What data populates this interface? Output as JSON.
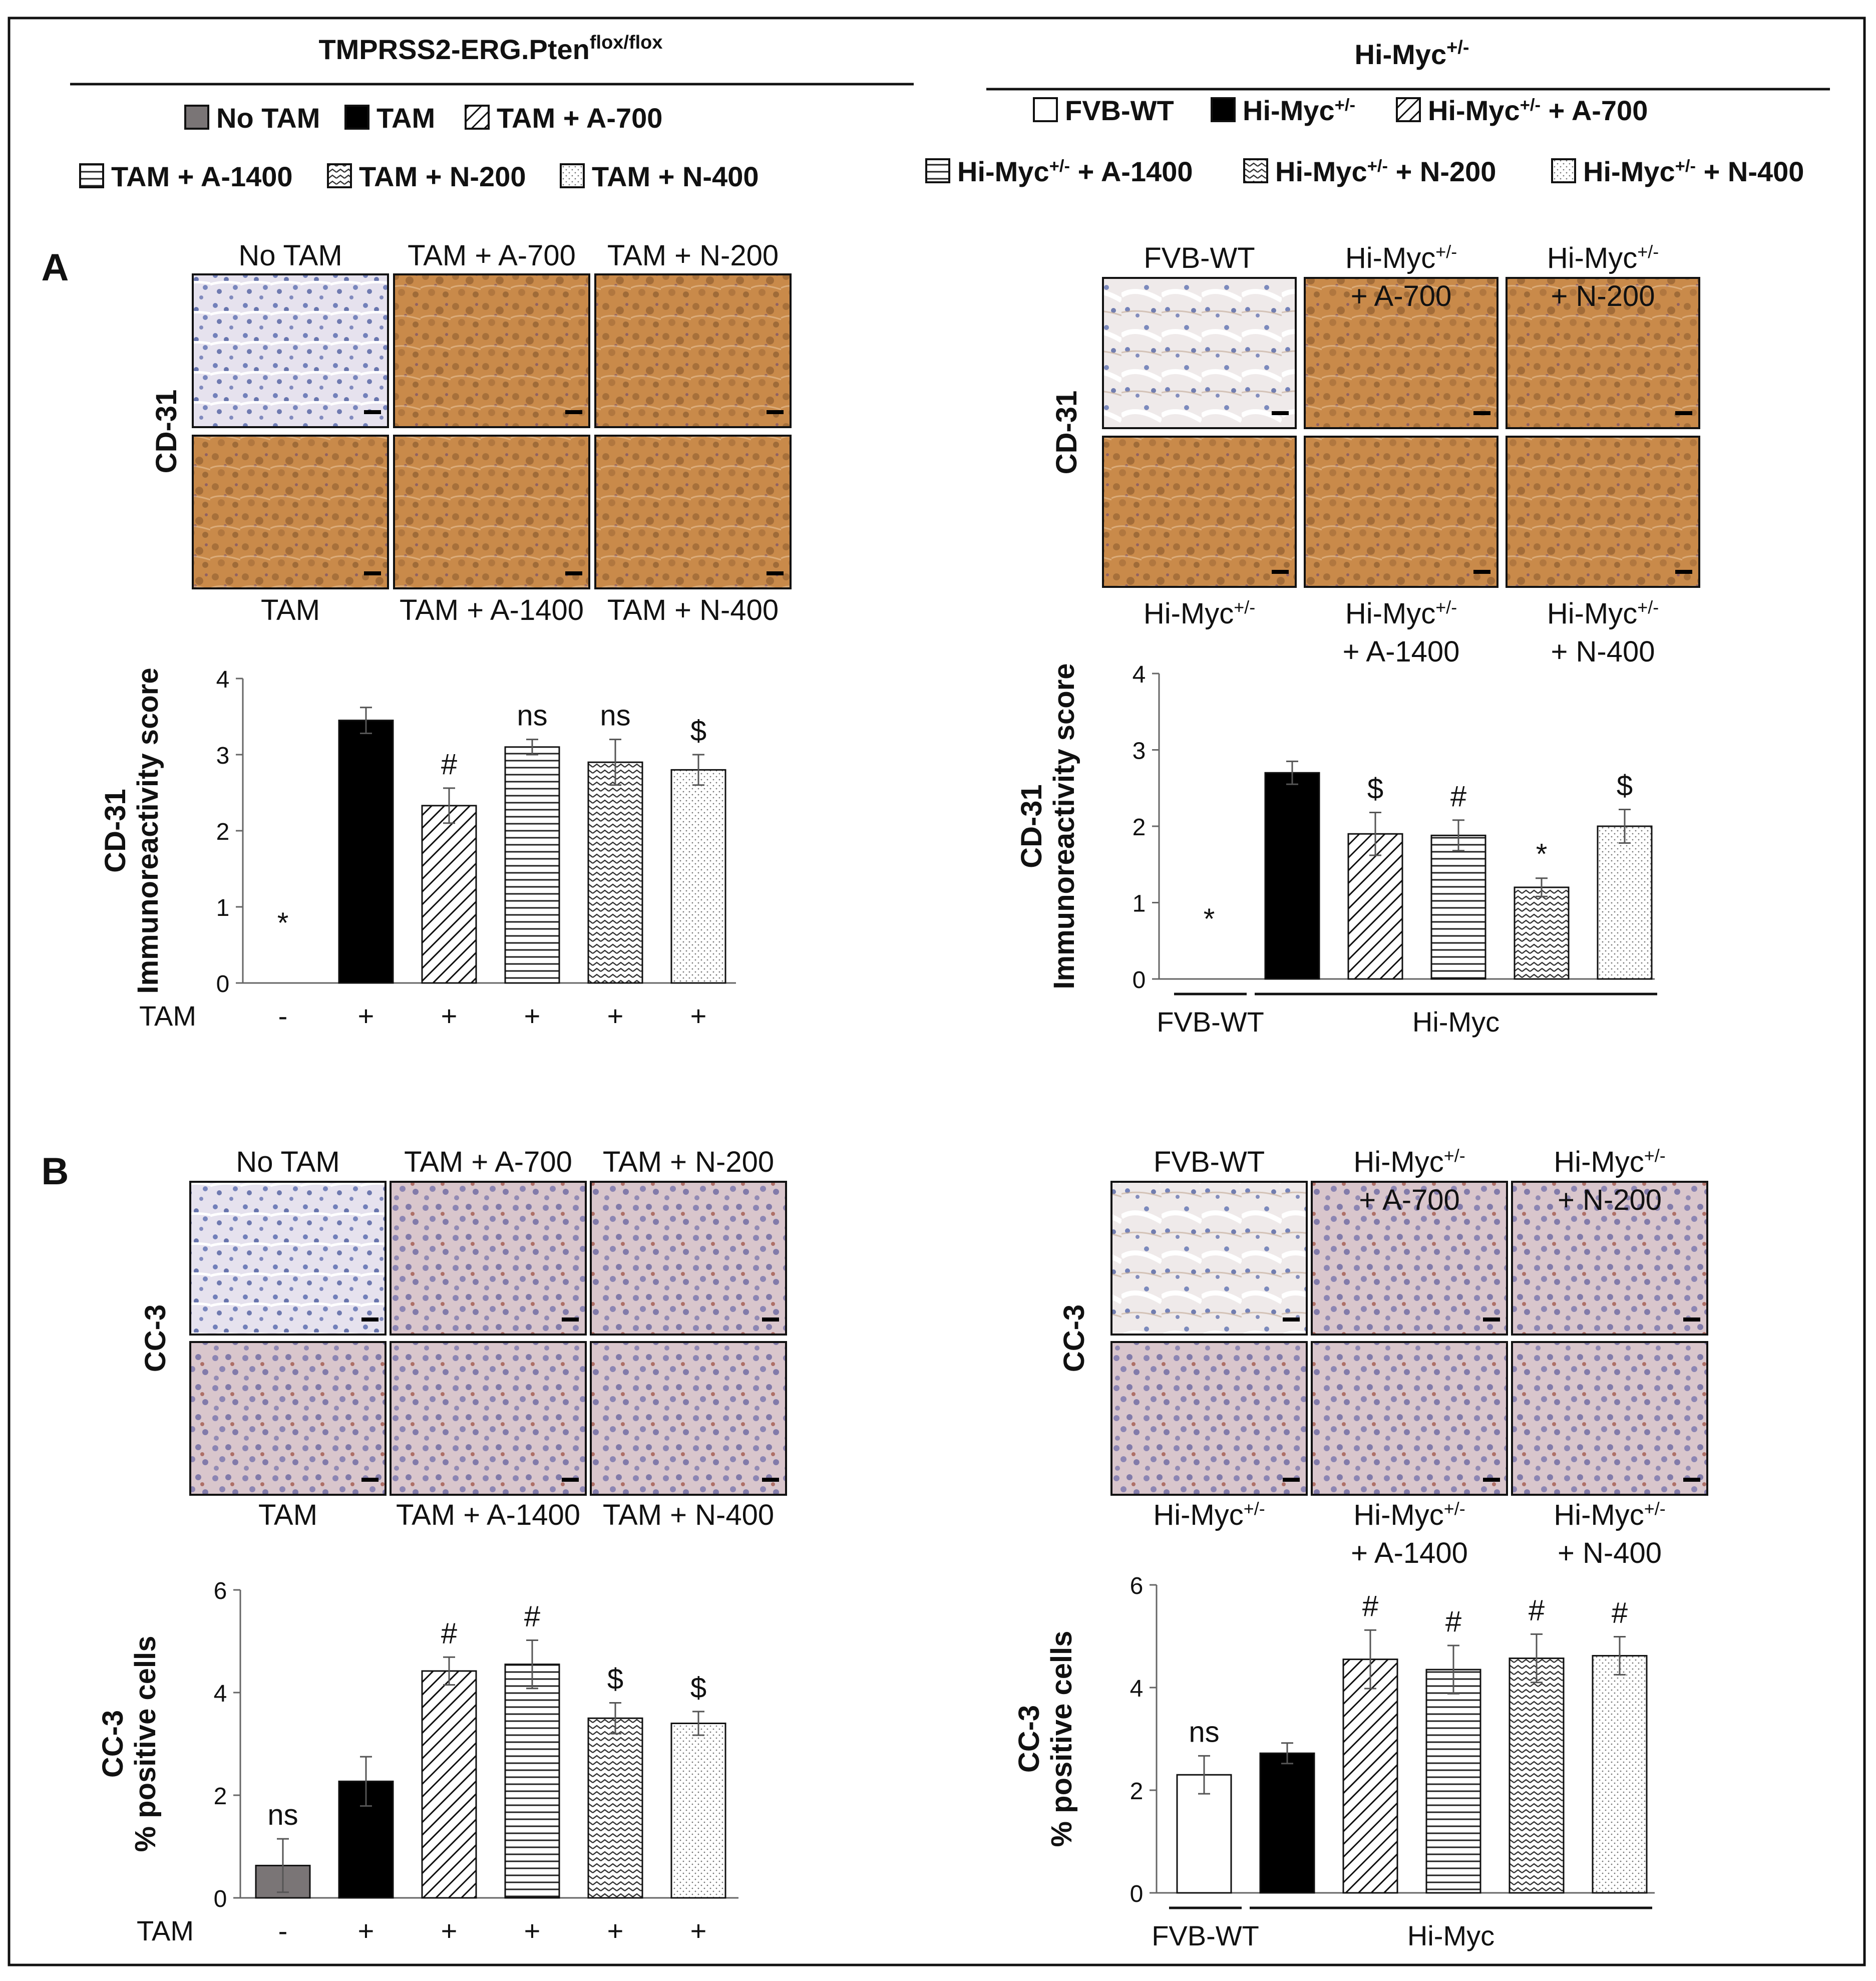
{
  "left_panel": {
    "title": "TMPRSS2-ERG.Pten",
    "title_sup": "flox/flox",
    "legend_row1": [
      {
        "label": "No TAM",
        "pattern": "gray"
      },
      {
        "label": "TAM",
        "pattern": "black"
      },
      {
        "label": "TAM + A-700",
        "pattern": "diag"
      }
    ],
    "legend_row2": [
      {
        "label": "TAM + A-1400",
        "pattern": "horiz"
      },
      {
        "label": "TAM + N-200",
        "pattern": "wave"
      },
      {
        "label": "TAM + N-400",
        "pattern": "dots"
      }
    ]
  },
  "right_panel": {
    "title": "Hi-Myc",
    "title_sup": "+/-",
    "legend_row1": [
      {
        "label": "FVB-WT",
        "pattern": "white"
      },
      {
        "label": "Hi-Myc+/-",
        "pattern": "black"
      },
      {
        "label": "Hi-Myc+/- + A-700",
        "pattern": "diag"
      }
    ],
    "legend_row2": [
      {
        "label": "Hi-Myc+/- + A-1400",
        "pattern": "horiz"
      },
      {
        "label": "Hi-Myc+/- + N-200",
        "pattern": "wave"
      },
      {
        "label": "Hi-Myc+/- + N-400",
        "pattern": "dots"
      }
    ]
  },
  "section_labels": {
    "a": "A",
    "b": "B"
  },
  "micrographs": {
    "A_left": {
      "stain": "CD-31",
      "top": [
        "No TAM",
        "TAM + A-700",
        "TAM + N-200"
      ],
      "bottom": [
        "TAM",
        "TAM + A-1400",
        "TAM + N-400"
      ]
    },
    "A_right": {
      "stain": "CD-31",
      "top": [
        "FVB-WT",
        "Hi-Myc+/-\n+ A-700",
        "Hi-Myc+/-\n+ N-200"
      ],
      "bottom": [
        "Hi-Myc+/-",
        "Hi-Myc+/-\n+ A-1400",
        "Hi-Myc+/-\n+ N-400"
      ]
    },
    "B_left": {
      "stain": "CC-3",
      "top": [
        "No TAM",
        "TAM + A-700",
        "TAM + N-200"
      ],
      "bottom": [
        "TAM",
        "TAM + A-1400",
        "TAM + N-400"
      ]
    },
    "B_right": {
      "stain": "CC-3",
      "top": [
        "FVB-WT",
        "Hi-Myc+/-\n+ A-700",
        "Hi-Myc+/-\n+ N-200"
      ],
      "bottom": [
        "Hi-Myc+/-",
        "Hi-Myc+/-\n+ A-1400",
        "Hi-Myc+/-\n+ N-400"
      ]
    }
  },
  "chart_data": [
    {
      "id": "A_left",
      "type": "bar",
      "ylabel": [
        "CD-31",
        "Immunoreactivity score"
      ],
      "ylim": [
        0,
        4
      ],
      "yticks": [
        0,
        1,
        2,
        3,
        4
      ],
      "xlabel_prefix": "TAM",
      "tam_signs": [
        "-",
        "+",
        "+",
        "+",
        "+",
        "+"
      ],
      "values": [
        0,
        3.45,
        2.33,
        3.1,
        2.9,
        2.8
      ],
      "errors": [
        0,
        0.17,
        0.23,
        0.1,
        0.3,
        0.2
      ],
      "patterns": [
        "gray",
        "black",
        "diag",
        "horiz",
        "wave",
        "dots"
      ],
      "annotations": [
        "*",
        "",
        "#",
        "ns",
        "ns",
        "$"
      ]
    },
    {
      "id": "A_right",
      "type": "bar",
      "ylabel": [
        "CD-31",
        "Immunoreactivity score"
      ],
      "ylim": [
        0,
        4
      ],
      "yticks": [
        0,
        1,
        2,
        3,
        4
      ],
      "group_labels": [
        "FVB-WT",
        "Hi-Myc"
      ],
      "values": [
        0,
        2.7,
        1.9,
        1.88,
        1.2,
        2.0
      ],
      "errors": [
        0,
        0.15,
        0.28,
        0.2,
        0.12,
        0.22
      ],
      "patterns": [
        "white",
        "black",
        "diag",
        "horiz",
        "wave",
        "dots"
      ],
      "annotations": [
        "*",
        "",
        "$",
        "#",
        "*",
        "$"
      ]
    },
    {
      "id": "B_left",
      "type": "bar",
      "ylabel": [
        "CC-3",
        "% positive cells"
      ],
      "ylim": [
        0,
        6
      ],
      "yticks": [
        0,
        2,
        4,
        6
      ],
      "xlabel_prefix": "TAM",
      "tam_signs": [
        "-",
        "+",
        "+",
        "+",
        "+",
        "+"
      ],
      "values": [
        0.63,
        2.27,
        4.42,
        4.55,
        3.5,
        3.4
      ],
      "errors": [
        0.52,
        0.48,
        0.27,
        0.47,
        0.3,
        0.23
      ],
      "patterns": [
        "gray",
        "black",
        "diag",
        "horiz",
        "wave",
        "dots"
      ],
      "annotations": [
        "ns",
        "",
        "#",
        "#",
        "$",
        "$"
      ]
    },
    {
      "id": "B_right",
      "type": "bar",
      "ylabel": [
        "CC-3",
        "% positive cells"
      ],
      "ylim": [
        0,
        6
      ],
      "yticks": [
        0,
        2,
        4,
        6
      ],
      "group_labels": [
        "FVB-WT",
        "Hi-Myc"
      ],
      "values": [
        2.3,
        2.72,
        4.55,
        4.35,
        4.57,
        4.62
      ],
      "errors": [
        0.37,
        0.2,
        0.57,
        0.47,
        0.47,
        0.37
      ],
      "patterns": [
        "white",
        "black",
        "diag",
        "horiz",
        "wave",
        "dots"
      ],
      "annotations": [
        "ns",
        "",
        "#",
        "#",
        "#",
        "#"
      ]
    }
  ]
}
